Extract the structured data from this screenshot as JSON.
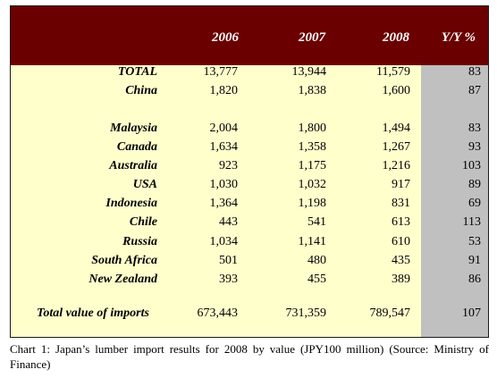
{
  "chart_data": {
    "type": "table",
    "columns": [
      "2006",
      "2007",
      "2008",
      "Y/Y %"
    ],
    "rows": [
      {
        "label": "TOTAL",
        "values": [
          "13,777",
          "13,944",
          "11,579",
          "83"
        ]
      },
      {
        "label": "China",
        "values": [
          "1,820",
          "1,838",
          "1,600",
          "87"
        ]
      },
      {
        "label": "Malaysia",
        "values": [
          "2,004",
          "1,800",
          "1,494",
          "83"
        ]
      },
      {
        "label": "Canada",
        "values": [
          "1,634",
          "1,358",
          "1,267",
          "93"
        ]
      },
      {
        "label": "Australia",
        "values": [
          "923",
          "1,175",
          "1,216",
          "103"
        ]
      },
      {
        "label": "USA",
        "values": [
          "1,030",
          "1,032",
          "917",
          "89"
        ]
      },
      {
        "label": "Indonesia",
        "values": [
          "1,364",
          "1,198",
          "831",
          "69"
        ]
      },
      {
        "label": "Chile",
        "values": [
          "443",
          "541",
          "613",
          "113"
        ]
      },
      {
        "label": "Russia",
        "values": [
          "1,034",
          "1,141",
          "610",
          "53"
        ]
      },
      {
        "label": "South Africa",
        "values": [
          "501",
          "480",
          "435",
          "91"
        ]
      },
      {
        "label": "New Zealand",
        "values": [
          "393",
          "455",
          "389",
          "86"
        ]
      },
      {
        "label": "Total value of imports",
        "values": [
          "673,443",
          "731,359",
          "789,547",
          "107"
        ]
      }
    ],
    "caption": "Chart 1: Japan’s lumber import results for 2008 by value (JPY100 million) (Source: Ministry of Finance)"
  }
}
